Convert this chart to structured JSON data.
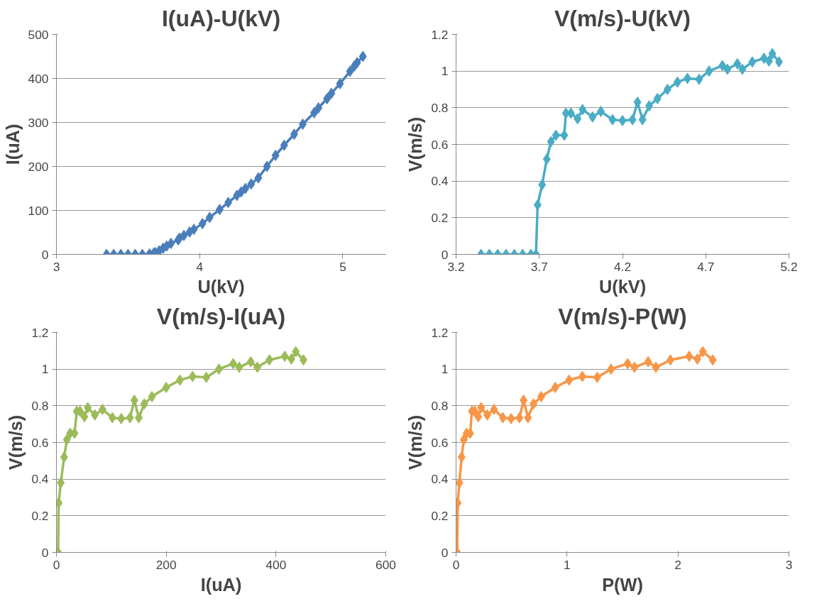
{
  "chart_data": [
    {
      "type": "line",
      "title": "I(uA)-U(kV)",
      "xlabel": "U(kV)",
      "ylabel": "I(uA)",
      "marker": "diamond",
      "line_style": "solid",
      "grid": "y",
      "x": [
        3.35,
        3.4,
        3.45,
        3.5,
        3.55,
        3.6,
        3.65,
        3.68,
        3.69,
        3.717,
        3.745,
        3.77,
        3.8,
        3.85,
        3.86,
        3.89,
        3.93,
        3.96,
        4.02,
        4.07,
        4.14,
        4.2,
        4.26,
        4.29,
        4.32,
        4.36,
        4.41,
        4.47,
        4.53,
        4.59,
        4.66,
        4.72,
        4.8,
        4.83,
        4.89,
        4.92,
        4.98,
        5.05,
        5.08,
        5.1,
        5.14
      ],
      "series": [
        {
          "color": "#4a7ebb",
          "values": [
            0,
            0,
            0,
            0,
            0,
            0,
            1,
            3,
            4,
            8,
            14,
            19,
            25,
            33,
            37,
            43,
            51,
            57,
            70,
            84,
            102,
            118,
            134,
            142,
            150,
            160,
            174,
            200,
            225,
            248,
            273,
            296,
            322,
            333,
            354,
            366,
            388,
            416,
            428,
            436,
            450
          ]
        }
      ],
      "xlim": [
        3,
        5.3
      ],
      "xticks": [
        3,
        4,
        5
      ],
      "ylim": [
        0,
        500
      ],
      "yticks": [
        0,
        100,
        200,
        300,
        400,
        500
      ]
    },
    {
      "type": "line",
      "title": "V(m/s)-U(kV)",
      "xlabel": "U(kV)",
      "ylabel": "V(m/s)",
      "marker": "diamond",
      "line_style": "solid",
      "grid": "y",
      "x": [
        3.35,
        3.4,
        3.45,
        3.5,
        3.55,
        3.6,
        3.65,
        3.68,
        3.69,
        3.717,
        3.745,
        3.77,
        3.8,
        3.85,
        3.86,
        3.89,
        3.93,
        3.96,
        4.02,
        4.07,
        4.14,
        4.2,
        4.26,
        4.29,
        4.32,
        4.36,
        4.41,
        4.47,
        4.53,
        4.59,
        4.66,
        4.72,
        4.8,
        4.83,
        4.89,
        4.92,
        4.98,
        5.05,
        5.08,
        5.1,
        5.14
      ],
      "series": [
        {
          "color": "#4bacc6",
          "values": [
            0,
            0,
            0,
            0,
            0,
            0,
            0,
            0,
            0.27,
            0.38,
            0.52,
            0.615,
            0.65,
            0.65,
            0.77,
            0.77,
            0.74,
            0.79,
            0.75,
            0.78,
            0.735,
            0.73,
            0.735,
            0.83,
            0.735,
            0.81,
            0.85,
            0.9,
            0.94,
            0.96,
            0.955,
            1.0,
            1.03,
            1.01,
            1.04,
            1.01,
            1.05,
            1.07,
            1.055,
            1.095,
            1.05
          ]
        }
      ],
      "xlim": [
        3.2,
        5.2
      ],
      "xticks": [
        3.2,
        3.7,
        4.2,
        4.7,
        5.2
      ],
      "ylim": [
        0,
        1.2
      ],
      "yticks": [
        0,
        0.2,
        0.4,
        0.6,
        0.8,
        1,
        1.2
      ]
    },
    {
      "type": "line",
      "title": "V(m/s)-I(uA)",
      "xlabel": "I(uA)",
      "ylabel": "V(m/s)",
      "marker": "diamond",
      "line_style": "solid",
      "grid": "y",
      "x": [
        0,
        0,
        0,
        0,
        0,
        0,
        1,
        3,
        4,
        8,
        14,
        19,
        25,
        33,
        37,
        43,
        51,
        57,
        70,
        84,
        102,
        118,
        134,
        142,
        150,
        160,
        174,
        200,
        225,
        248,
        273,
        296,
        322,
        333,
        354,
        366,
        388,
        416,
        428,
        436,
        450
      ],
      "series": [
        {
          "color": "#9bbb59",
          "values": [
            0,
            0,
            0,
            0,
            0,
            0,
            0,
            0,
            0.27,
            0.38,
            0.52,
            0.615,
            0.65,
            0.65,
            0.77,
            0.77,
            0.74,
            0.79,
            0.75,
            0.78,
            0.735,
            0.73,
            0.735,
            0.83,
            0.735,
            0.81,
            0.85,
            0.9,
            0.94,
            0.96,
            0.955,
            1.0,
            1.03,
            1.01,
            1.04,
            1.01,
            1.05,
            1.07,
            1.055,
            1.095,
            1.05
          ]
        }
      ],
      "xlim": [
        0,
        600
      ],
      "xticks": [
        0,
        200,
        400,
        600
      ],
      "ylim": [
        0,
        1.2
      ],
      "yticks": [
        0,
        0.2,
        0.4,
        0.6,
        0.8,
        1,
        1.2
      ]
    },
    {
      "type": "line",
      "title": "V(m/s)-P(W)",
      "xlabel": "P(W)",
      "ylabel": "V(m/s)",
      "marker": "diamond",
      "line_style": "solid",
      "grid": "y",
      "x": [
        0,
        0,
        0,
        0,
        0,
        0,
        0,
        0.01,
        0.015,
        0.03,
        0.05,
        0.07,
        0.095,
        0.127,
        0.143,
        0.167,
        0.2,
        0.226,
        0.281,
        0.342,
        0.422,
        0.496,
        0.571,
        0.609,
        0.648,
        0.698,
        0.767,
        0.894,
        1.019,
        1.138,
        1.272,
        1.397,
        1.546,
        1.608,
        1.731,
        1.801,
        1.932,
        2.101,
        2.174,
        2.224,
        2.313
      ],
      "series": [
        {
          "color": "#f79646",
          "values": [
            0,
            0,
            0,
            0,
            0,
            0,
            0,
            0,
            0.27,
            0.38,
            0.52,
            0.615,
            0.65,
            0.65,
            0.77,
            0.77,
            0.74,
            0.79,
            0.75,
            0.78,
            0.735,
            0.73,
            0.735,
            0.83,
            0.735,
            0.81,
            0.85,
            0.9,
            0.94,
            0.96,
            0.955,
            1.0,
            1.03,
            1.01,
            1.04,
            1.01,
            1.05,
            1.07,
            1.055,
            1.095,
            1.05
          ]
        }
      ],
      "xlim": [
        0,
        3
      ],
      "xticks": [
        0,
        1,
        2,
        3
      ],
      "ylim": [
        0,
        1.2
      ],
      "yticks": [
        0,
        0.2,
        0.4,
        0.6,
        0.8,
        1,
        1.2
      ]
    }
  ]
}
